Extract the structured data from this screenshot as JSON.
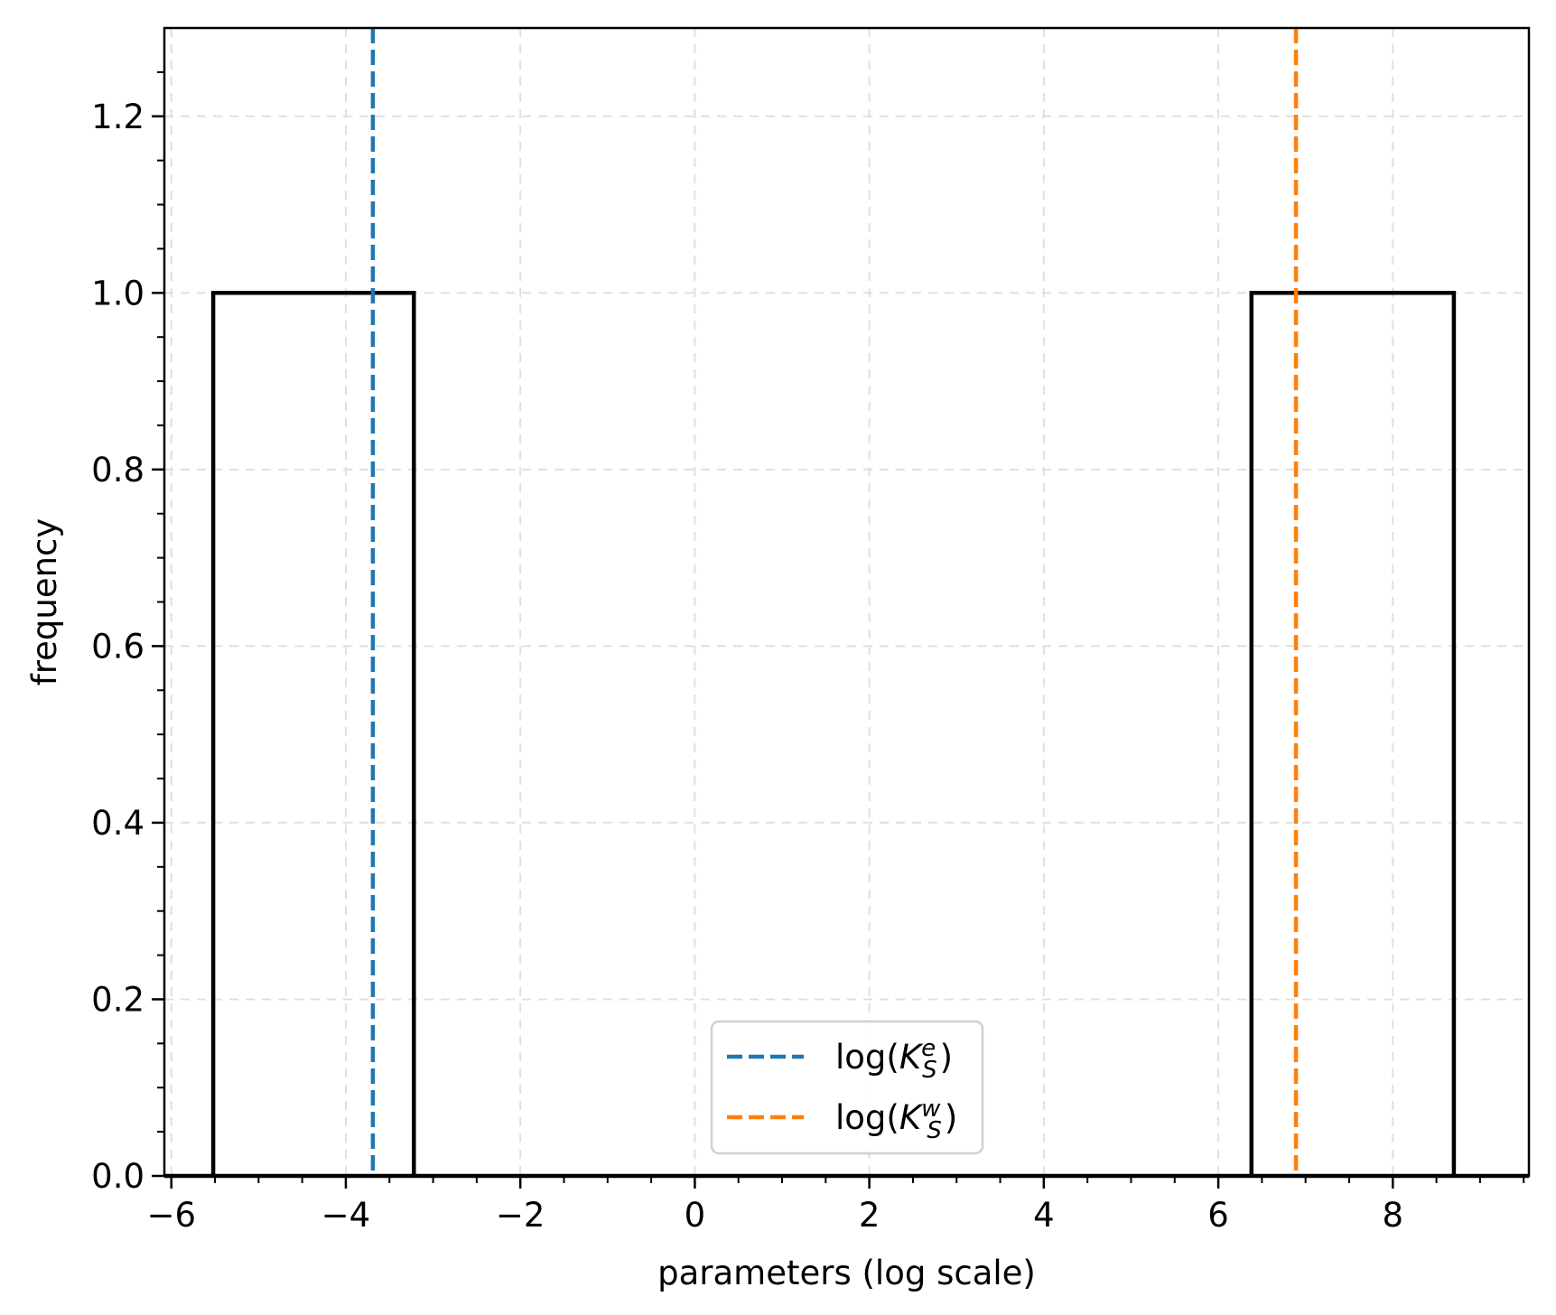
{
  "chart_data": {
    "type": "histogram",
    "xlabel": "parameters (log scale)",
    "ylabel": "frequency",
    "xlim": [
      -6.08,
      9.56
    ],
    "ylim": [
      0,
      1.3
    ],
    "grid": true,
    "x_ticks": [
      -6,
      -4,
      -2,
      0,
      2,
      4,
      6,
      8
    ],
    "x_tick_labels": [
      "−6",
      "−4",
      "−2",
      "0",
      "2",
      "4",
      "6",
      "8"
    ],
    "y_ticks": [
      0.0,
      0.2,
      0.4,
      0.6,
      0.8,
      1.0,
      1.2
    ],
    "y_tick_labels": [
      "0.0",
      "0.2",
      "0.4",
      "0.6",
      "0.8",
      "1.0",
      "1.2"
    ],
    "bars": [
      {
        "x_start": -5.52,
        "x_end": -3.22,
        "value": 1
      },
      {
        "x_start": 6.38,
        "x_end": 8.7,
        "value": 1
      }
    ],
    "vlines": [
      {
        "name": "log(K_S^e)",
        "label_base": "log(",
        "label_K": "K",
        "label_sup": "e",
        "label_sub": "S",
        "label_close": ")",
        "x": -3.69,
        "color": "#1f77b4",
        "style": "dashed"
      },
      {
        "name": "log(K_S^w)",
        "label_base": "log(",
        "label_K": "K",
        "label_sup": "w",
        "label_sub": "S",
        "label_close": ")",
        "x": 6.89,
        "color": "#ff7f0e",
        "style": "dashed"
      }
    ],
    "legend_position": "lower-center",
    "bar_color": "#000000",
    "grid_color": "#e0e0e0"
  }
}
